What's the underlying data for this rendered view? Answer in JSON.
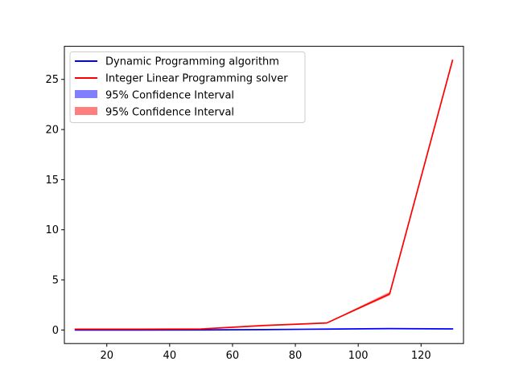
{
  "chart_data": {
    "type": "line",
    "title": "",
    "xlabel": "",
    "ylabel": "",
    "xlim": [
      6.5,
      133.5
    ],
    "ylim": [
      -1.35,
      28.3
    ],
    "xticks": [
      20,
      40,
      60,
      80,
      100,
      120
    ],
    "yticks": [
      0,
      5,
      10,
      15,
      20,
      25
    ],
    "grid": false,
    "legend_position": "top-left",
    "series": [
      {
        "name": "Dynamic Programming algorithm",
        "color": "#0000ff",
        "x": [
          10,
          30,
          50,
          70,
          90,
          110,
          130
        ],
        "y": [
          0.0,
          0.0,
          0.01,
          0.04,
          0.09,
          0.14,
          0.11
        ],
        "ci_lower": [
          0.0,
          0.0,
          0.01,
          0.04,
          0.09,
          0.14,
          0.11
        ],
        "ci_upper": [
          0.0,
          0.0,
          0.01,
          0.04,
          0.09,
          0.14,
          0.11
        ]
      },
      {
        "name": "Integer Linear Programming solver",
        "color": "#ff0000",
        "x": [
          10,
          30,
          50,
          70,
          90,
          110,
          130
        ],
        "y": [
          0.08,
          0.08,
          0.1,
          0.45,
          0.7,
          3.6,
          26.9
        ],
        "ci_lower": [
          0.07,
          0.07,
          0.09,
          0.43,
          0.67,
          3.45,
          26.8
        ],
        "ci_upper": [
          0.09,
          0.09,
          0.11,
          0.47,
          0.73,
          3.8,
          27.0
        ]
      }
    ],
    "legend": [
      {
        "label": "Dynamic Programming algorithm",
        "kind": "line",
        "color": "#0000ff"
      },
      {
        "label": "Integer Linear Programming solver",
        "kind": "line",
        "color": "#ff0000"
      },
      {
        "label": "95% Confidence Interval",
        "kind": "patch",
        "color": "#0000ff"
      },
      {
        "label": "95% Confidence Interval",
        "kind": "patch",
        "color": "#ff0000"
      }
    ]
  }
}
